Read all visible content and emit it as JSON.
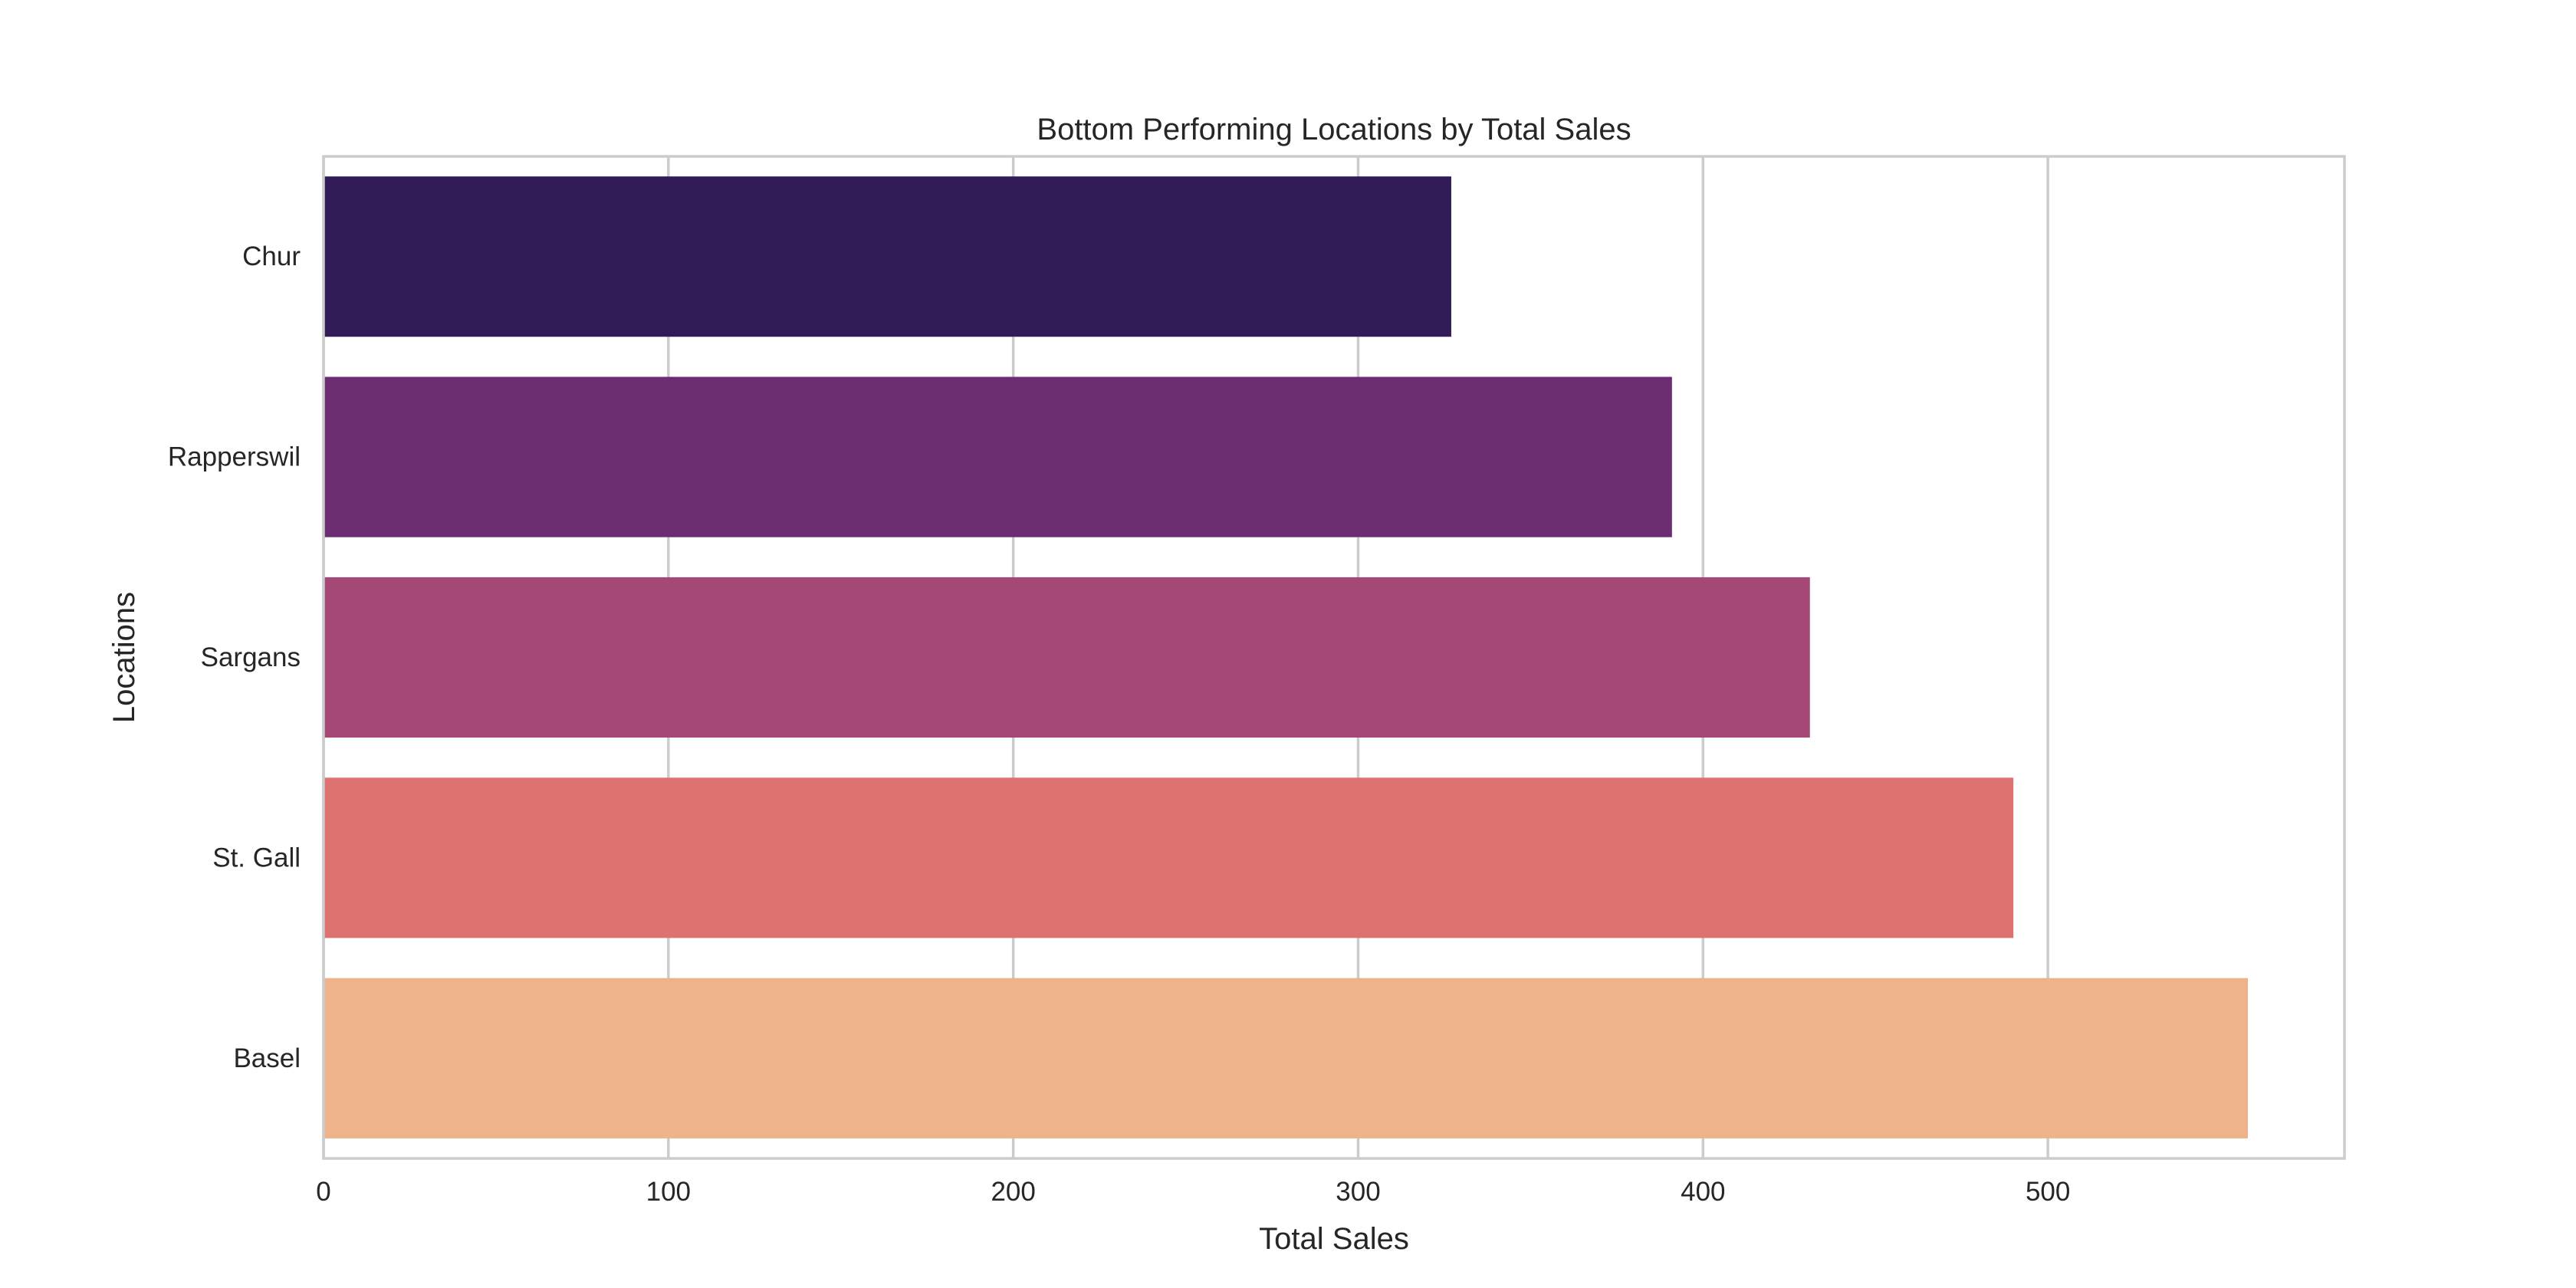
{
  "chart_data": {
    "type": "bar",
    "orientation": "horizontal",
    "title": "Bottom Performing Locations by Total Sales",
    "xlabel": "Total Sales",
    "ylabel": "Locations",
    "categories": [
      "Chur",
      "Rapperswil",
      "Sargans",
      "St. Gall",
      "Basel"
    ],
    "values": [
      327,
      391,
      431,
      490,
      558
    ],
    "colors": [
      "#311c57",
      "#6b2c72",
      "#a64877",
      "#de7270",
      "#eeb38b"
    ],
    "xlim": [
      0,
      586
    ],
    "xticks": [
      0,
      100,
      200,
      300,
      400,
      500
    ],
    "xtick_labels": [
      "0",
      "100",
      "200",
      "300",
      "400",
      "500"
    ],
    "grid": true,
    "grid_color": "#cccccc",
    "text_color": "#262626"
  }
}
